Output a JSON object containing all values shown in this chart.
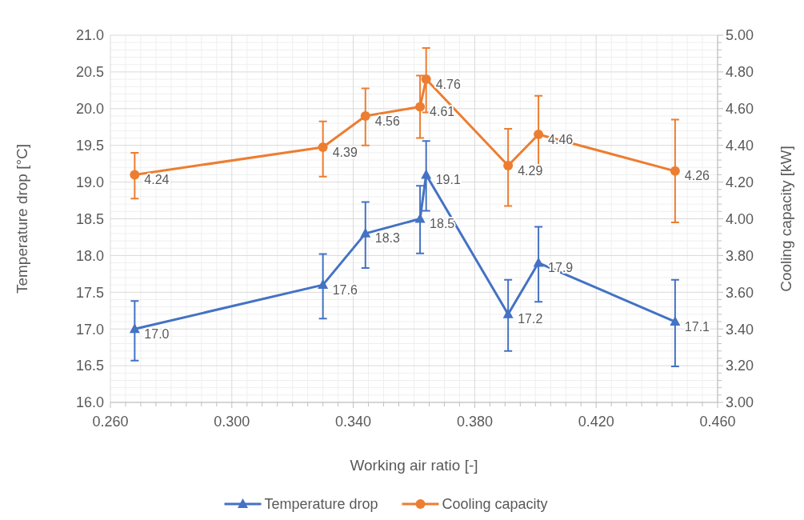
{
  "chart_data": {
    "type": "line",
    "xlabel": "Working air ratio [-]",
    "ylabel": "Temperature drop [°C]",
    "y2label": "Cooling capacity [kW]",
    "xlim": [
      0.26,
      0.46
    ],
    "xticks": [
      {
        "value": 0.26,
        "label": "0.260"
      },
      {
        "value": 0.3,
        "label": "0.300"
      },
      {
        "value": 0.34,
        "label": "0.340"
      },
      {
        "value": 0.38,
        "label": "0.380"
      },
      {
        "value": 0.42,
        "label": "0.420"
      },
      {
        "value": 0.46,
        "label": "0.460"
      }
    ],
    "ylim": [
      16,
      21
    ],
    "yticks": [
      {
        "value": 16,
        "label": "16.0"
      },
      {
        "value": 16.5,
        "label": "16.5"
      },
      {
        "value": 17,
        "label": "17.0"
      },
      {
        "value": 17.5,
        "label": "17.5"
      },
      {
        "value": 18,
        "label": "18.0"
      },
      {
        "value": 18.5,
        "label": "18.5"
      },
      {
        "value": 19,
        "label": "19.0"
      },
      {
        "value": 19.5,
        "label": "19.5"
      },
      {
        "value": 20,
        "label": "20.0"
      },
      {
        "value": 20.5,
        "label": "20.5"
      },
      {
        "value": 21,
        "label": "21.0"
      }
    ],
    "y2lim": [
      3,
      5
    ],
    "y2ticks": [
      {
        "value": 3,
        "label": "3.00"
      },
      {
        "value": 3.2,
        "label": "3.20"
      },
      {
        "value": 3.4,
        "label": "3.40"
      },
      {
        "value": 3.6,
        "label": "3.60"
      },
      {
        "value": 3.8,
        "label": "3.80"
      },
      {
        "value": 4,
        "label": "4.00"
      },
      {
        "value": 4.2,
        "label": "4.20"
      },
      {
        "value": 4.4,
        "label": "4.40"
      },
      {
        "value": 4.6,
        "label": "4.60"
      },
      {
        "value": 4.8,
        "label": "4.80"
      },
      {
        "value": 5,
        "label": "5.00"
      }
    ],
    "grid": true,
    "legend": "bottom",
    "series": [
      {
        "name": "Temperature drop",
        "color": "#4472c4",
        "marker": "triangle",
        "x": [
          0.268,
          0.33,
          0.344,
          0.362,
          0.364,
          0.391,
          0.401,
          0.446
        ],
        "values": [
          17.0,
          17.6,
          18.3,
          18.5,
          19.1,
          17.2,
          17.9,
          17.1
        ],
        "value_labels": [
          "17.0",
          "17.6",
          "18.3",
          "18.5",
          "19.1",
          "17.2",
          "17.9",
          "17.1"
        ],
        "errors": [
          [
            16.57,
            17.38
          ],
          [
            17.14,
            18.02
          ],
          [
            17.83,
            18.73
          ],
          [
            18.03,
            18.95
          ],
          [
            18.61,
            19.56
          ],
          [
            16.7,
            17.67
          ],
          [
            17.37,
            18.39
          ],
          [
            16.49,
            17.67
          ]
        ]
      },
      {
        "name": "Cooling capacity",
        "color": "#ed7d31",
        "marker": "circle",
        "axis": "y2",
        "x": [
          0.268,
          0.33,
          0.344,
          0.362,
          0.364,
          0.391,
          0.401,
          0.446
        ],
        "values": [
          4.24,
          4.39,
          4.56,
          4.61,
          4.76,
          4.29,
          4.46,
          4.26
        ],
        "value_labels": [
          "4.24",
          "4.39",
          "4.56",
          "4.61",
          "4.76",
          "4.29",
          "4.46",
          "4.26"
        ],
        "errors": [
          [
            4.11,
            4.36
          ],
          [
            4.23,
            4.53
          ],
          [
            4.4,
            4.71
          ],
          [
            4.44,
            4.78
          ],
          [
            4.58,
            4.93
          ],
          [
            4.07,
            4.49
          ],
          [
            4.24,
            4.67
          ],
          [
            3.98,
            4.54
          ]
        ]
      }
    ]
  }
}
